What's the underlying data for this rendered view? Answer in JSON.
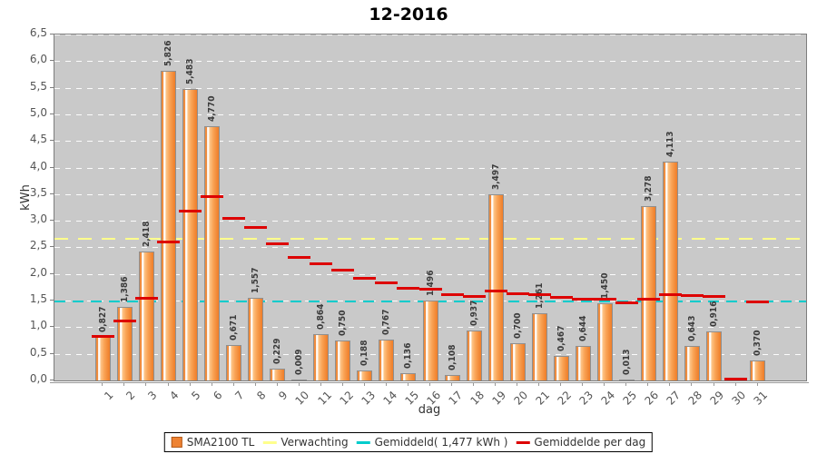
{
  "title": "12-2016",
  "axes": {
    "y_label": "kWh",
    "x_label": "dag",
    "y_ticks": [
      "0,0",
      "0,5",
      "1,0",
      "1,5",
      "2,0",
      "2,5",
      "3,0",
      "3,5",
      "4,0",
      "4,5",
      "5,0",
      "5,5",
      "6,0",
      "6,5"
    ],
    "x_ticks": [
      "1",
      "2",
      "3",
      "4",
      "5",
      "6",
      "7",
      "8",
      "9",
      "10",
      "11",
      "12",
      "13",
      "14",
      "15",
      "16",
      "17",
      "18",
      "19",
      "20",
      "21",
      "22",
      "23",
      "24",
      "25",
      "26",
      "27",
      "28",
      "29",
      "30",
      "31"
    ]
  },
  "legend": {
    "items": [
      {
        "label": "SMA2100 TL",
        "color": "#ee8232",
        "type": "square"
      },
      {
        "label": "Verwachting",
        "color": "#ffff8c",
        "type": "dash"
      },
      {
        "label": "Gemiddeld( 1,477 kWh )",
        "color": "#00cccc",
        "type": "dash"
      },
      {
        "label": "Gemiddelde per dag",
        "color": "#dd0202",
        "type": "dash"
      }
    ]
  },
  "chart_data": {
    "type": "bar",
    "title": "12-2016",
    "xlabel": "dag",
    "ylabel": "kWh",
    "ylim": [
      0,
      6.5
    ],
    "y_tick_step": 0.5,
    "grid": true,
    "legend_position": "bottom",
    "categories": [
      1,
      2,
      3,
      4,
      5,
      6,
      7,
      8,
      9,
      10,
      11,
      12,
      13,
      14,
      15,
      16,
      17,
      18,
      19,
      20,
      21,
      22,
      23,
      24,
      25,
      26,
      27,
      28,
      29,
      30,
      31
    ],
    "series": [
      {
        "name": "SMA2100 TL",
        "type": "bar",
        "values": [
          0.827,
          1.386,
          2.418,
          5.826,
          5.483,
          4.77,
          0.671,
          1.557,
          0.229,
          0.009,
          0.864,
          0.75,
          0.188,
          0.767,
          0.136,
          1.496,
          0.108,
          0.937,
          3.497,
          0.7,
          1.261,
          0.467,
          0.644,
          1.45,
          0.013,
          3.278,
          4.113,
          0.643,
          0.916,
          null,
          0.37
        ],
        "labels": [
          "0,827",
          "1,386",
          "2,418",
          "5,826",
          "5,483",
          "4,770",
          "0,671",
          "1,557",
          "0,229",
          "0,009",
          "0,864",
          "0,750",
          "0,188",
          "0,767",
          "0,136",
          "1,496",
          "0,108",
          "0,937",
          "3,497",
          "0,700",
          "1,261",
          "0,467",
          "0,644",
          "1,450",
          "0,013",
          "3,278",
          "4,113",
          "0,643",
          "0,916",
          "",
          "0,370"
        ]
      },
      {
        "name": "Verwachting",
        "type": "hline",
        "value": 2.67
      },
      {
        "name": "Gemiddeld( 1,477 kWh )",
        "type": "hline",
        "value": 1.477
      },
      {
        "name": "Gemiddelde per dag",
        "type": "segments",
        "values": [
          0.83,
          1.11,
          1.54,
          2.61,
          3.19,
          3.45,
          3.05,
          2.87,
          2.57,
          2.32,
          2.19,
          2.07,
          1.92,
          1.84,
          1.73,
          1.71,
          1.62,
          1.58,
          1.68,
          1.63,
          1.61,
          1.56,
          1.52,
          1.52,
          1.46,
          1.53,
          1.62,
          1.59,
          1.57,
          0.03,
          1.48
        ]
      }
    ]
  },
  "colors": {
    "plot_background": "#c9c9c9",
    "bar_fill": "#f59344",
    "expectation_line": "#ffff8c",
    "average_line": "#00cccc",
    "running_average": "#dd0202",
    "gridline": "#ffffff"
  }
}
